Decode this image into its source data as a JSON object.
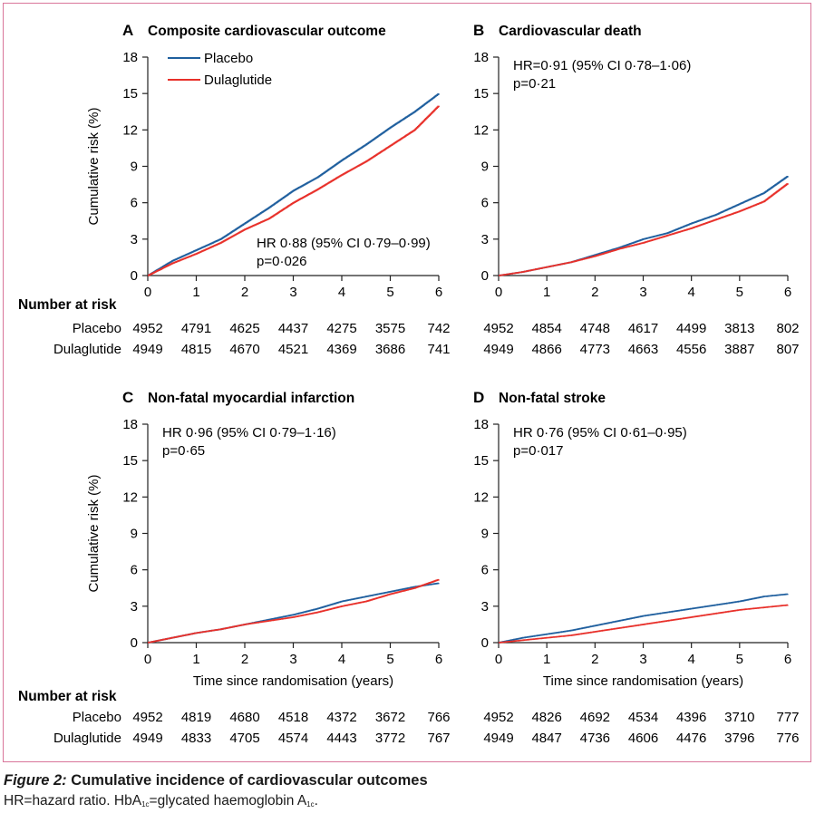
{
  "figure": {
    "caption_label": "Figure 2:",
    "caption_title": "Cumulative incidence of cardiovascular outcomes",
    "caption_text": "HR=hazard ratio. HbA1c=glycated haemoglobin A1c.",
    "caption_abbrev": "HR=hazard ratio. HbA",
    "caption_sub1": "1c",
    "caption_mid": "=glycated haemoglobin A",
    "caption_sub2": "1c",
    "caption_end": "."
  },
  "colors": {
    "placebo": "#1f5f9e",
    "dulaglutide": "#e8302a",
    "frame": "#d9769a"
  },
  "shared": {
    "ylabel": "Cumulative risk (%)",
    "xlabel": "Time since randomisation (years)",
    "number_at_risk_label": "Number at risk",
    "rows": [
      "Placebo",
      "Dulaglutide"
    ]
  },
  "chart_data": [
    {
      "panel": "A",
      "type": "line",
      "title": "Composite cardiovascular outcome",
      "legend": [
        "Placebo",
        "Dulaglutide"
      ],
      "legend_placement": "top-left",
      "annotation": [
        "HR 0·88 (95% CI 0·79–0·99)",
        "p=0·026"
      ],
      "xlim": [
        0,
        6
      ],
      "ylim": [
        0,
        18
      ],
      "xticks": [
        0,
        1,
        2,
        3,
        4,
        5,
        6
      ],
      "yticks": [
        0,
        3,
        6,
        9,
        12,
        15,
        18
      ],
      "show_ylabel": true,
      "show_xlabel": false,
      "series": [
        {
          "name": "Placebo",
          "x": [
            0,
            0.5,
            1,
            1.5,
            2,
            2.5,
            3,
            3.5,
            4,
            4.5,
            5,
            5.5,
            6
          ],
          "values": [
            0,
            1.2,
            2.1,
            3.0,
            4.3,
            5.6,
            7.0,
            8.1,
            9.5,
            10.8,
            12.2,
            13.5,
            15.0
          ]
        },
        {
          "name": "Dulaglutide",
          "x": [
            0,
            0.5,
            1,
            1.5,
            2,
            2.5,
            3,
            3.5,
            4,
            4.5,
            5,
            5.5,
            6
          ],
          "values": [
            0,
            1.0,
            1.8,
            2.7,
            3.8,
            4.7,
            6.0,
            7.1,
            8.3,
            9.4,
            10.7,
            12.0,
            14.0
          ]
        }
      ],
      "at_risk": {
        "Placebo": [
          "4952",
          "4791",
          "4625",
          "4437",
          "4275",
          "3575",
          "742"
        ],
        "Dulaglutide": [
          "4949",
          "4815",
          "4670",
          "4521",
          "4369",
          "3686",
          "741"
        ]
      }
    },
    {
      "panel": "B",
      "type": "line",
      "title": "Cardiovascular death",
      "annotation": [
        "HR=0·91 (95% CI 0·78–1·06)",
        "p=0·21"
      ],
      "xlim": [
        0,
        6
      ],
      "ylim": [
        0,
        18
      ],
      "xticks": [
        0,
        1,
        2,
        3,
        4,
        5,
        6
      ],
      "yticks": [
        0,
        3,
        6,
        9,
        12,
        15,
        18
      ],
      "show_ylabel": false,
      "show_xlabel": false,
      "series": [
        {
          "name": "Placebo",
          "x": [
            0,
            0.5,
            1,
            1.5,
            2,
            2.5,
            3,
            3.5,
            4,
            4.5,
            5,
            5.5,
            6
          ],
          "values": [
            0,
            0.3,
            0.7,
            1.1,
            1.7,
            2.3,
            3.0,
            3.5,
            4.3,
            5.0,
            5.9,
            6.8,
            8.2
          ]
        },
        {
          "name": "Dulaglutide",
          "x": [
            0,
            0.5,
            1,
            1.5,
            2,
            2.5,
            3,
            3.5,
            4,
            4.5,
            5,
            5.5,
            6
          ],
          "values": [
            0,
            0.3,
            0.7,
            1.1,
            1.6,
            2.2,
            2.7,
            3.3,
            3.9,
            4.6,
            5.3,
            6.1,
            7.6
          ]
        }
      ],
      "at_risk": {
        "Placebo": [
          "4952",
          "4854",
          "4748",
          "4617",
          "4499",
          "3813",
          "802"
        ],
        "Dulaglutide": [
          "4949",
          "4866",
          "4773",
          "4663",
          "4556",
          "3887",
          "807"
        ]
      }
    },
    {
      "panel": "C",
      "type": "line",
      "title": "Non-fatal myocardial infarction",
      "annotation": [
        "HR 0·96 (95% CI 0·79–1·16)",
        "p=0·65"
      ],
      "xlim": [
        0,
        6
      ],
      "ylim": [
        0,
        18
      ],
      "xticks": [
        0,
        1,
        2,
        3,
        4,
        5,
        6
      ],
      "yticks": [
        0,
        3,
        6,
        9,
        12,
        15,
        18
      ],
      "show_ylabel": true,
      "show_xlabel": true,
      "series": [
        {
          "name": "Placebo",
          "x": [
            0,
            0.5,
            1,
            1.5,
            2,
            2.5,
            3,
            3.5,
            4,
            4.5,
            5,
            5.5,
            6
          ],
          "values": [
            0,
            0.4,
            0.8,
            1.1,
            1.5,
            1.9,
            2.3,
            2.8,
            3.4,
            3.8,
            4.2,
            4.6,
            4.9
          ]
        },
        {
          "name": "Dulaglutide",
          "x": [
            0,
            0.5,
            1,
            1.5,
            2,
            2.5,
            3,
            3.5,
            4,
            4.5,
            5,
            5.5,
            6
          ],
          "values": [
            0,
            0.4,
            0.8,
            1.1,
            1.5,
            1.8,
            2.1,
            2.5,
            3.0,
            3.4,
            4.0,
            4.5,
            5.2
          ]
        }
      ],
      "at_risk": {
        "Placebo": [
          "4952",
          "4819",
          "4680",
          "4518",
          "4372",
          "3672",
          "766"
        ],
        "Dulaglutide": [
          "4949",
          "4833",
          "4705",
          "4574",
          "4443",
          "3772",
          "767"
        ]
      }
    },
    {
      "panel": "D",
      "type": "line",
      "title": "Non-fatal stroke",
      "annotation": [
        "HR 0·76 (95% CI 0·61–0·95)",
        "p=0·017"
      ],
      "xlim": [
        0,
        6
      ],
      "ylim": [
        0,
        18
      ],
      "xticks": [
        0,
        1,
        2,
        3,
        4,
        5,
        6
      ],
      "yticks": [
        0,
        3,
        6,
        9,
        12,
        15,
        18
      ],
      "show_ylabel": false,
      "show_xlabel": true,
      "series": [
        {
          "name": "Placebo",
          "x": [
            0,
            0.5,
            1,
            1.5,
            2,
            2.5,
            3,
            3.5,
            4,
            4.5,
            5,
            5.5,
            6
          ],
          "values": [
            0,
            0.4,
            0.7,
            1.0,
            1.4,
            1.8,
            2.2,
            2.5,
            2.8,
            3.1,
            3.4,
            3.8,
            4.0
          ]
        },
        {
          "name": "Dulaglutide",
          "x": [
            0,
            0.5,
            1,
            1.5,
            2,
            2.5,
            3,
            3.5,
            4,
            4.5,
            5,
            5.5,
            6
          ],
          "values": [
            0,
            0.2,
            0.4,
            0.6,
            0.9,
            1.2,
            1.5,
            1.8,
            2.1,
            2.4,
            2.7,
            2.9,
            3.1
          ]
        }
      ],
      "at_risk": {
        "Placebo": [
          "4952",
          "4826",
          "4692",
          "4534",
          "4396",
          "3710",
          "777"
        ],
        "Dulaglutide": [
          "4949",
          "4847",
          "4736",
          "4606",
          "4476",
          "3796",
          "776"
        ]
      }
    }
  ]
}
